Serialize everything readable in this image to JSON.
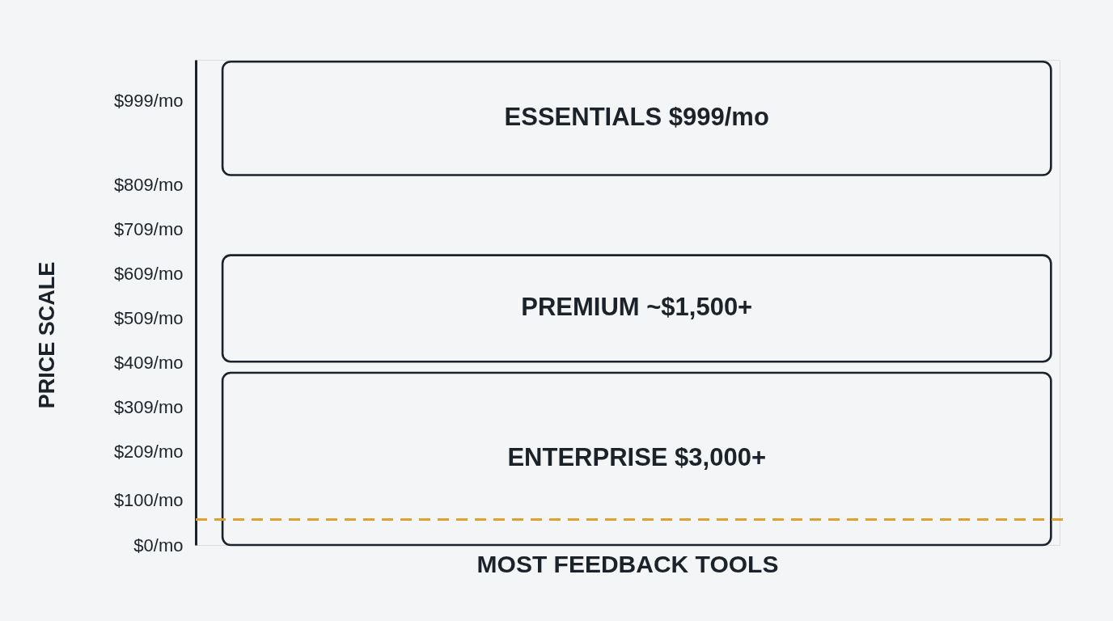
{
  "chart_data": {
    "type": "bar",
    "ylabel": "PRICE SCALE",
    "categories": [
      null
    ],
    "series": [
      {
        "name": "ESSENTIALS $999/mo",
        "color": "#1b2229",
        "base": [
          831
        ],
        "values": [
          255
        ]
      },
      {
        "name": "PREMIUM  ~$1,500+",
        "color": "#1b2229",
        "base": [
          412
        ],
        "values": [
          239
        ]
      },
      {
        "name": "ENTERPRISE  $3,000+",
        "color": "#1b2229",
        "base": [
          0
        ],
        "values": [
          387
        ]
      }
    ],
    "ylim": [
      0,
      1090
    ],
    "yticks": [
      {
        "value": 0,
        "label": "$0/mo"
      },
      {
        "value": 100,
        "label": "$100/mo"
      },
      {
        "value": 209,
        "label": "$209/mo"
      },
      {
        "value": 309,
        "label": "$309/mo"
      },
      {
        "value": 409,
        "label": "$409/mo"
      },
      {
        "value": 509,
        "label": "$509/mo"
      },
      {
        "value": 609,
        "label": "$609/mo"
      },
      {
        "value": 709,
        "label": "$709/mo"
      },
      {
        "value": 809,
        "label": "$809/mo"
      },
      {
        "value": 999,
        "label": "$999/mo"
      }
    ],
    "ref_lines": [
      {
        "axis": "y",
        "value": 57,
        "label": "MOST FEEDBACK TOOLS",
        "color": "#e0a030",
        "line_style": "dashed"
      }
    ],
    "grid": false
  }
}
